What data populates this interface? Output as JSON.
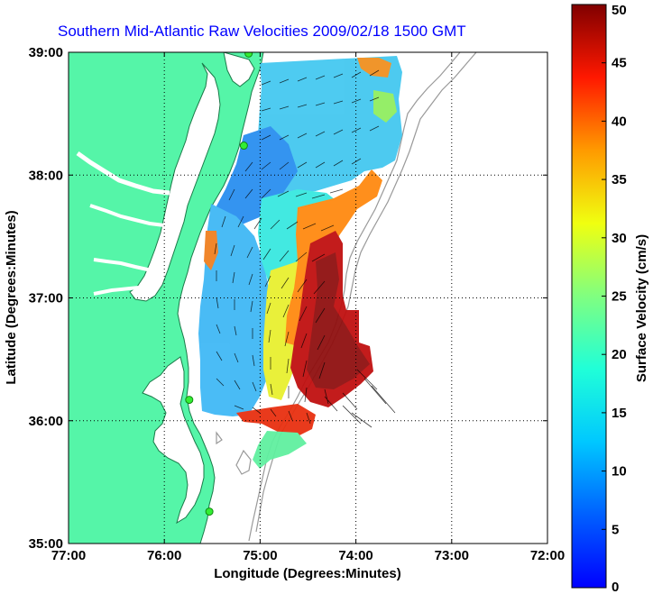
{
  "chart_data": {
    "type": "map",
    "title": "Southern Mid-Atlantic Raw Velocities 2009/02/18 1500 GMT",
    "xlabel": "Longitude (Degrees:Minutes)",
    "ylabel": "Latitude (Degrees:Minutes)",
    "x_ticks": [
      {
        "value": -77,
        "label": "77:00"
      },
      {
        "value": -76,
        "label": "76:00"
      },
      {
        "value": -75,
        "label": "75:00"
      },
      {
        "value": -74,
        "label": "74:00"
      },
      {
        "value": -73,
        "label": "73:00"
      },
      {
        "value": -72,
        "label": "72:00"
      }
    ],
    "y_ticks": [
      {
        "value": 35,
        "label": "35:00"
      },
      {
        "value": 36,
        "label": "36:00"
      },
      {
        "value": 37,
        "label": "37:00"
      },
      {
        "value": 38,
        "label": "38:00"
      },
      {
        "value": 39,
        "label": "39:00"
      }
    ],
    "xlim": [
      -77,
      -72
    ],
    "ylim": [
      35,
      39
    ],
    "grid": true,
    "colorbar": {
      "label": "Surface Velocity (cm/s)",
      "range": [
        0,
        50
      ],
      "ticks": [
        {
          "value": 0,
          "label": "0"
        },
        {
          "value": 5,
          "label": "5"
        },
        {
          "value": 10,
          "label": "10"
        },
        {
          "value": 15,
          "label": "15"
        },
        {
          "value": 20,
          "label": "20"
        },
        {
          "value": 25,
          "label": "25"
        },
        {
          "value": 30,
          "label": "30"
        },
        {
          "value": 35,
          "label": "35"
        },
        {
          "value": 40,
          "label": "40"
        },
        {
          "value": 45,
          "label": "45"
        },
        {
          "value": 50,
          "label": "50"
        }
      ],
      "colormap": "jet"
    },
    "colors": {
      "land": "#55f5a8",
      "coast_outline": "#1a7a48",
      "bathymetry": "#999999",
      "title": "#0000ff",
      "station": "#33ee33"
    },
    "stations": [
      {
        "lon": -75.12,
        "lat": 38.99
      },
      {
        "lon": -75.17,
        "lat": 38.24
      },
      {
        "lon": -75.74,
        "lat": 36.17
      },
      {
        "lon": -75.53,
        "lat": 35.26
      }
    ]
  }
}
